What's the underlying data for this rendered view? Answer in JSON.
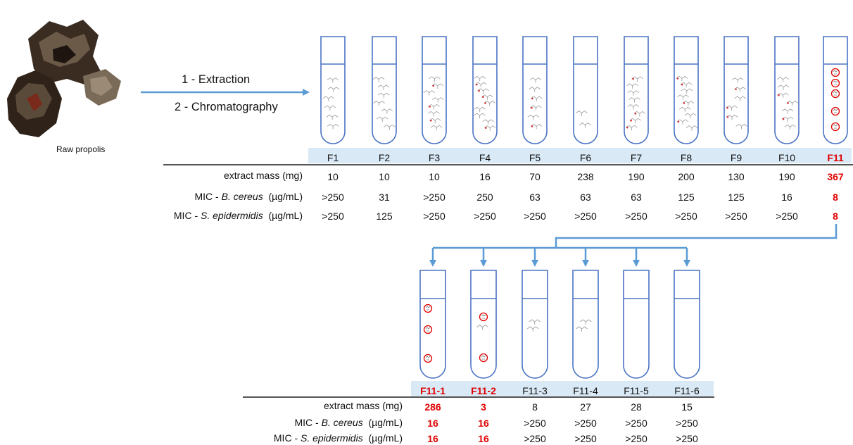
{
  "raw_material": {
    "label": "Raw propolis"
  },
  "process": {
    "step1": "1 - Extraction",
    "step2": "2 - Chromatography"
  },
  "colors": {
    "tube": "#4a73c4",
    "arrow": "#5b9bd5",
    "band": "#d9e9f6",
    "highlight": "#e00000",
    "rule": "#555555"
  },
  "row_labels": {
    "mass": "extract mass (mg)",
    "bc_prefix": "MIC - ",
    "bc_organism": "B. cereus",
    "bc_unit": "(µg/mL)",
    "se_prefix": "MIC - ",
    "se_organism": "S. epidermidis",
    "se_unit": "(µg/mL)"
  },
  "fractions": [
    {
      "name": "F1",
      "mass": "10",
      "mic_bc": ">250",
      "mic_se": ">250",
      "highlight": false
    },
    {
      "name": "F2",
      "mass": "10",
      "mic_bc": "31",
      "mic_se": "125",
      "highlight": false
    },
    {
      "name": "F3",
      "mass": "10",
      "mic_bc": ">250",
      "mic_se": ">250",
      "highlight": false
    },
    {
      "name": "F4",
      "mass": "16",
      "mic_bc": "250",
      "mic_se": ">250",
      "highlight": false
    },
    {
      "name": "F5",
      "mass": "70",
      "mic_bc": "63",
      "mic_se": ">250",
      "highlight": false
    },
    {
      "name": "F6",
      "mass": "238",
      "mic_bc": "63",
      "mic_se": ">250",
      "highlight": false
    },
    {
      "name": "F7",
      "mass": "190",
      "mic_bc": "63",
      "mic_se": ">250",
      "highlight": false
    },
    {
      "name": "F8",
      "mass": "200",
      "mic_bc": "125",
      "mic_se": ">250",
      "highlight": false
    },
    {
      "name": "F9",
      "mass": "130",
      "mic_bc": "125",
      "mic_se": ">250",
      "highlight": false
    },
    {
      "name": "F10",
      "mass": "190",
      "mic_bc": "16",
      "mic_se": ">250",
      "highlight": false
    },
    {
      "name": "F11",
      "mass": "367",
      "mic_bc": "8",
      "mic_se": "8",
      "highlight": true
    }
  ],
  "subfractions": [
    {
      "name": "F11-1",
      "mass": "286",
      "mic_bc": "16",
      "mic_se": "16",
      "highlight": true
    },
    {
      "name": "F11-2",
      "mass": "3",
      "mic_bc": "16",
      "mic_se": "16",
      "highlight": true
    },
    {
      "name": "F11-3",
      "mass": "8",
      "mic_bc": ">250",
      "mic_se": ">250",
      "highlight": false
    },
    {
      "name": "F11-4",
      "mass": "27",
      "mic_bc": ">250",
      "mic_se": ">250",
      "highlight": false
    },
    {
      "name": "F11-5",
      "mass": "28",
      "mic_bc": ">250",
      "mic_se": ">250",
      "highlight": false
    },
    {
      "name": "F11-6",
      "mass": "15",
      "mic_bc": ">250",
      "mic_se": ">250",
      "highlight": false
    }
  ]
}
